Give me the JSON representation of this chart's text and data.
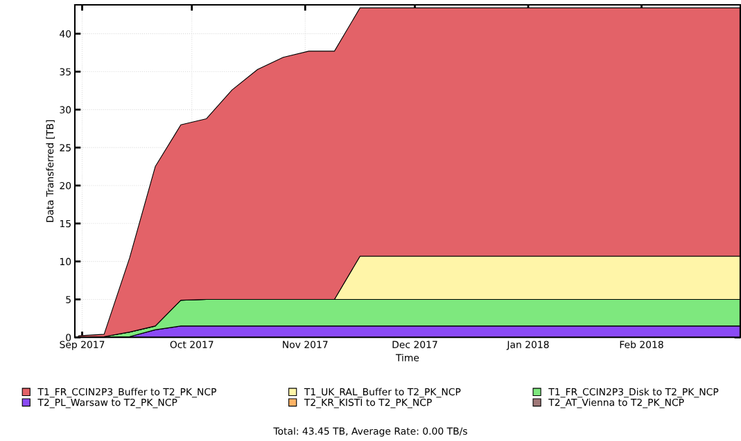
{
  "chart_data": {
    "type": "area",
    "stacked": true,
    "xlabel": "Time",
    "ylabel": "Data Transferred [TB]",
    "x": [
      "2017-08-31",
      "2017-09-07",
      "2017-09-14",
      "2017-09-21",
      "2017-09-28",
      "2017-10-05",
      "2017-10-12",
      "2017-10-19",
      "2017-10-26",
      "2017-11-02",
      "2017-11-09",
      "2017-11-16",
      "2018-02-28"
    ],
    "series": [
      {
        "name": "T2_AT_Vienna to T2_PK_NCP",
        "color": "#a07878",
        "values": [
          null,
          null,
          null,
          null,
          null,
          null,
          null,
          null,
          null,
          null,
          null,
          null,
          null
        ]
      },
      {
        "name": "T2_KR_KISTI to T2_PK_NCP",
        "color": "#ffb366",
        "values": [
          null,
          null,
          null,
          null,
          null,
          null,
          null,
          null,
          null,
          null,
          null,
          null,
          null
        ]
      },
      {
        "name": "T2_PL_Warsaw to T2_PK_NCP",
        "color": "#8a4af5",
        "values": [
          0,
          0,
          0.1,
          1.0,
          1.5,
          1.5,
          1.5,
          1.5,
          1.5,
          1.5,
          1.5,
          1.5,
          1.5
        ]
      },
      {
        "name": "T1_FR_CCIN2P3_Disk to T2_PK_NCP",
        "color": "#7ee87e",
        "values": [
          0,
          0.1,
          0.6,
          0.5,
          3.4,
          3.5,
          3.5,
          3.5,
          3.5,
          3.5,
          3.5,
          3.5,
          3.5
        ]
      },
      {
        "name": "T1_UK_RAL_Buffer to T2_PK_NCP",
        "color": "#fff5a8",
        "values": [
          0,
          0,
          0,
          0,
          0,
          0,
          0,
          0,
          0,
          0,
          0,
          5.7,
          5.7
        ]
      },
      {
        "name": "T1_FR_CCIN2P3_Buffer to T2_PK_NCP",
        "color": "#e36268",
        "values": [
          0.2,
          0.3,
          9.8,
          21.0,
          23.1,
          23.8,
          27.6,
          30.3,
          31.9,
          32.7,
          32.7,
          32.7,
          32.7
        ]
      }
    ],
    "xlim": [
      "2017-08-30",
      "2018-02-28"
    ],
    "xticks": [
      {
        "value": "2017-09-01",
        "label": "Sep 2017"
      },
      {
        "value": "2017-10-01",
        "label": "Oct 2017"
      },
      {
        "value": "2017-11-01",
        "label": "Nov 2017"
      },
      {
        "value": "2017-12-01",
        "label": "Dec 2017"
      },
      {
        "value": "2018-01-01",
        "label": "Jan 2018"
      },
      {
        "value": "2018-02-01",
        "label": "Feb 2018"
      }
    ],
    "ylim": [
      0,
      43.8
    ],
    "yticks": [
      0,
      5,
      10,
      15,
      20,
      25,
      30,
      35,
      40
    ],
    "grid": true,
    "line_style": "dotted",
    "legend": "bottom",
    "annotations": [
      "Total: 43.45 TB, Average Rate: 0.00 TB/s"
    ]
  }
}
